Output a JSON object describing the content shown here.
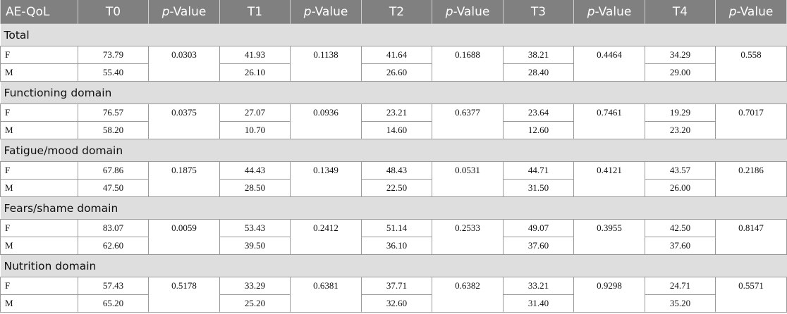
{
  "table": {
    "headers": [
      "AE-QoL",
      "T0",
      "p-Value",
      "T1",
      "p-Value",
      "T2",
      "p-Value",
      "T3",
      "p-Value",
      "T4",
      "p-Value"
    ],
    "sections": [
      {
        "title": "Total",
        "rows": [
          {
            "label": "F",
            "values": [
              "73.79",
              "41.93",
              "41.64",
              "38.21",
              "34.29"
            ]
          },
          {
            "label": "M",
            "values": [
              "55.40",
              "26.10",
              "26.60",
              "28.40",
              "29.00"
            ]
          }
        ],
        "p_values": [
          "0.0303",
          "0.1138",
          "0.1688",
          "0.4464",
          "0.558"
        ]
      },
      {
        "title": "Functioning domain",
        "rows": [
          {
            "label": "F",
            "values": [
              "76.57",
              "27.07",
              "23.21",
              "23.64",
              "19.29"
            ]
          },
          {
            "label": "M",
            "values": [
              "58.20",
              "10.70",
              "14.60",
              "12.60",
              "23.20"
            ]
          }
        ],
        "p_values": [
          "0.0375",
          "0.0936",
          "0.6377",
          "0.7461",
          "0.7017"
        ]
      },
      {
        "title": "Fatigue/mood domain",
        "rows": [
          {
            "label": "F",
            "values": [
              "67.86",
              "44.43",
              "48.43",
              "44.71",
              "43.57"
            ]
          },
          {
            "label": "M",
            "values": [
              "47.50",
              "28.50",
              "22.50",
              "31.50",
              "26.00"
            ]
          }
        ],
        "p_values": [
          "0.1875",
          "0.1349",
          "0.0531",
          "0.4121",
          "0.2186"
        ]
      },
      {
        "title": "Fears/shame domain",
        "rows": [
          {
            "label": "F",
            "values": [
              "83.07",
              "53.43",
              "51.14",
              "49.07",
              "42.50"
            ]
          },
          {
            "label": "M",
            "values": [
              "62.60",
              "39.50",
              "36.10",
              "37.60",
              "37.60"
            ]
          }
        ],
        "p_values": [
          "0.0059",
          "0.2412",
          "0.2533",
          "0.3955",
          "0.8147"
        ]
      },
      {
        "title": "Nutrition domain",
        "rows": [
          {
            "label": "F",
            "values": [
              "57.43",
              "33.29",
              "37.71",
              "33.21",
              "24.71"
            ]
          },
          {
            "label": "M",
            "values": [
              "65.20",
              "25.20",
              "32.60",
              "31.40",
              "35.20"
            ]
          }
        ],
        "p_values": [
          "0.5178",
          "0.6381",
          "0.6382",
          "0.9298",
          "0.5571"
        ]
      }
    ]
  }
}
